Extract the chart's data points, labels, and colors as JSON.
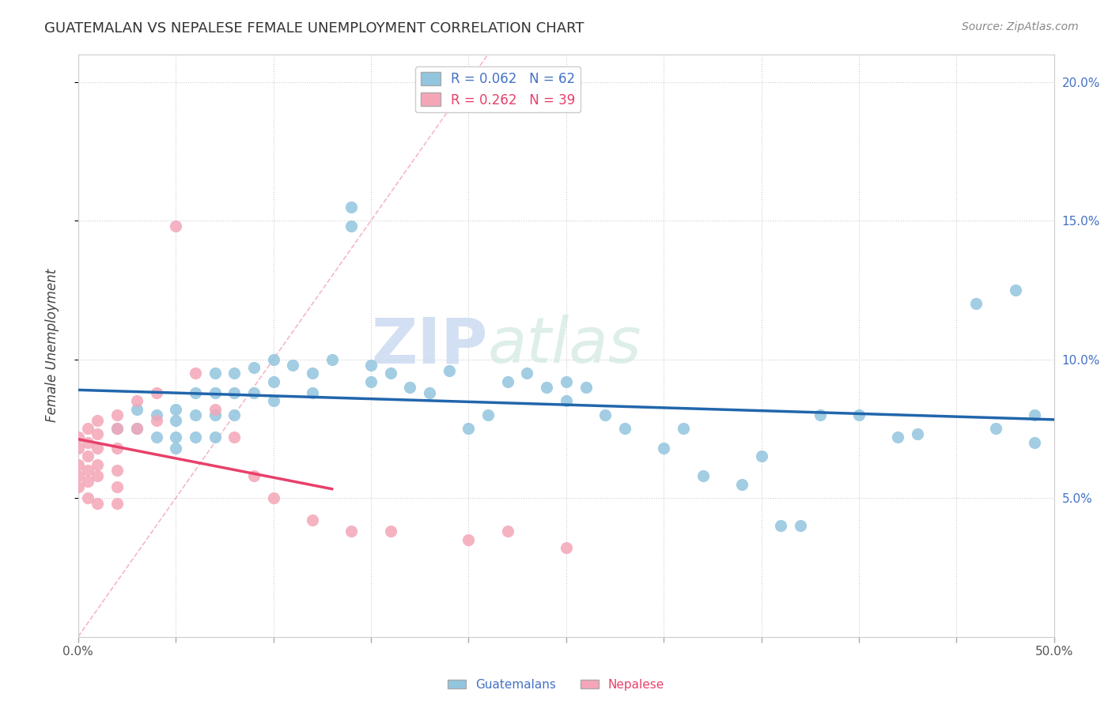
{
  "title": "GUATEMALAN VS NEPALESE FEMALE UNEMPLOYMENT CORRELATION CHART",
  "source": "Source: ZipAtlas.com",
  "ylabel": "Female Unemployment",
  "xlim": [
    0.0,
    0.5
  ],
  "ylim": [
    0.0,
    0.21
  ],
  "xticks": [
    0.0,
    0.05,
    0.1,
    0.15,
    0.2,
    0.25,
    0.3,
    0.35,
    0.4,
    0.45,
    0.5
  ],
  "xticklabels_show": [
    "0.0%",
    "50.0%"
  ],
  "ytick_positions": [
    0.05,
    0.1,
    0.15,
    0.2
  ],
  "ytick_labels": [
    "5.0%",
    "10.0%",
    "15.0%",
    "20.0%"
  ],
  "guatemalan_R": 0.062,
  "guatemalan_N": 62,
  "nepalese_R": 0.262,
  "nepalese_N": 39,
  "guatemalan_color": "#92C5DE",
  "nepalese_color": "#F4A6B8",
  "guatemalan_line_color": "#2166AC",
  "nepalese_line_color": "#E8406A",
  "diagonal_color": "#F4A6B8",
  "watermark_zip": "ZIP",
  "watermark_atlas": "atlas",
  "guatemalan_x": [
    0.02,
    0.03,
    0.03,
    0.04,
    0.04,
    0.05,
    0.05,
    0.05,
    0.05,
    0.06,
    0.06,
    0.06,
    0.07,
    0.07,
    0.07,
    0.07,
    0.08,
    0.08,
    0.08,
    0.09,
    0.09,
    0.1,
    0.1,
    0.1,
    0.11,
    0.12,
    0.12,
    0.13,
    0.14,
    0.14,
    0.15,
    0.15,
    0.16,
    0.17,
    0.18,
    0.19,
    0.2,
    0.21,
    0.22,
    0.23,
    0.24,
    0.25,
    0.25,
    0.26,
    0.27,
    0.28,
    0.3,
    0.31,
    0.32,
    0.34,
    0.35,
    0.36,
    0.37,
    0.38,
    0.4,
    0.42,
    0.43,
    0.46,
    0.47,
    0.48,
    0.49,
    0.49
  ],
  "guatemalan_y": [
    0.075,
    0.075,
    0.082,
    0.072,
    0.08,
    0.082,
    0.078,
    0.072,
    0.068,
    0.088,
    0.08,
    0.072,
    0.095,
    0.088,
    0.08,
    0.072,
    0.095,
    0.088,
    0.08,
    0.097,
    0.088,
    0.1,
    0.092,
    0.085,
    0.098,
    0.095,
    0.088,
    0.1,
    0.155,
    0.148,
    0.098,
    0.092,
    0.095,
    0.09,
    0.088,
    0.096,
    0.075,
    0.08,
    0.092,
    0.095,
    0.09,
    0.092,
    0.085,
    0.09,
    0.08,
    0.075,
    0.068,
    0.075,
    0.058,
    0.055,
    0.065,
    0.04,
    0.04,
    0.08,
    0.08,
    0.072,
    0.073,
    0.12,
    0.075,
    0.125,
    0.08,
    0.07
  ],
  "nepalese_x": [
    0.0,
    0.0,
    0.0,
    0.0,
    0.0,
    0.005,
    0.005,
    0.005,
    0.005,
    0.005,
    0.005,
    0.01,
    0.01,
    0.01,
    0.01,
    0.01,
    0.01,
    0.02,
    0.02,
    0.02,
    0.02,
    0.02,
    0.02,
    0.03,
    0.03,
    0.04,
    0.04,
    0.05,
    0.06,
    0.07,
    0.08,
    0.09,
    0.1,
    0.12,
    0.14,
    0.16,
    0.2,
    0.22,
    0.25
  ],
  "nepalese_y": [
    0.072,
    0.068,
    0.062,
    0.058,
    0.054,
    0.075,
    0.07,
    0.065,
    0.06,
    0.056,
    0.05,
    0.078,
    0.073,
    0.068,
    0.062,
    0.058,
    0.048,
    0.08,
    0.075,
    0.068,
    0.06,
    0.054,
    0.048,
    0.085,
    0.075,
    0.088,
    0.078,
    0.148,
    0.095,
    0.082,
    0.072,
    0.058,
    0.05,
    0.042,
    0.038,
    0.038,
    0.035,
    0.038,
    0.032
  ]
}
